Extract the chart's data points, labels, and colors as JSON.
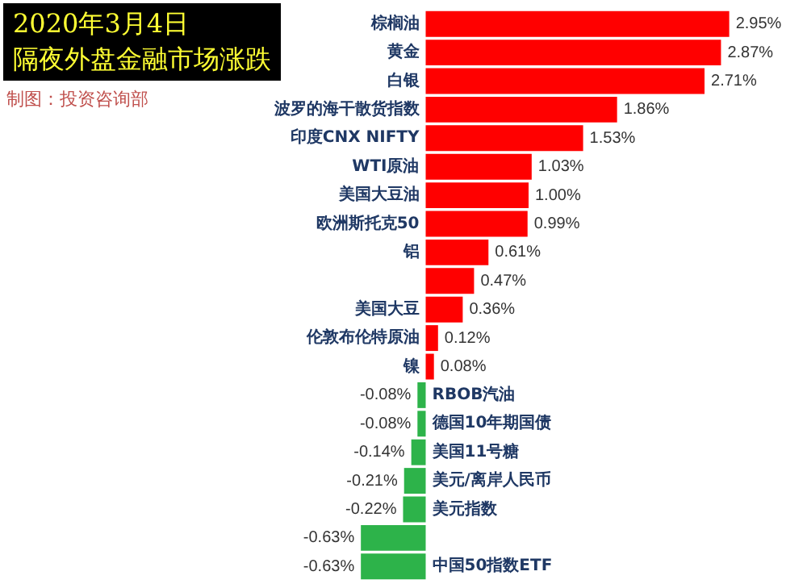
{
  "chart_data": {
    "type": "bar",
    "orientation": "horizontal",
    "title": "2020年3月4日",
    "subtitle": "隔夜外盘金融市场涨跌",
    "annotations": [
      "制图：投资咨询部"
    ],
    "categories": [
      "棕榈油",
      "黄金",
      "白银",
      "波罗的海干散货指数",
      "印度CNX NIFTY",
      "WTI原油",
      "美国大豆油",
      "欧洲斯托克50",
      "铝",
      null,
      "美国大豆",
      "伦敦布伦特原油",
      "镍",
      "RBOB汽油",
      "德国10年期国债",
      "美国11号糖",
      "美元/离岸人民币",
      "美元指数",
      null,
      "中国50指数ETF"
    ],
    "values": [
      2.95,
      2.87,
      2.71,
      1.86,
      1.53,
      1.03,
      1.0,
      0.99,
      0.61,
      0.47,
      0.36,
      0.12,
      0.08,
      -0.08,
      -0.08,
      -0.14,
      -0.21,
      -0.22,
      -0.63,
      -0.63
    ],
    "value_labels": [
      "2.95%",
      "2.87%",
      "2.71%",
      "1.86%",
      "1.53%",
      "1.03%",
      "1.00%",
      "0.99%",
      "0.61%",
      "0.47%",
      "0.36%",
      "0.12%",
      "0.08%",
      "-0.08%",
      "-0.08%",
      "-0.14%",
      "-0.21%",
      "-0.22%",
      "-0.63%",
      "-0.63%"
    ],
    "colors": [
      "#ff0000",
      "#ff0000",
      "#ff0000",
      "#ff0000",
      "#ff0000",
      "#ff0000",
      "#ff0000",
      "#ff0000",
      "#ff0000",
      "#ff0000",
      "#ff0000",
      "#ff0000",
      "#ff0000",
      "#2db34a",
      "#2db34a",
      "#2db34a",
      "#2db34a",
      "#2db34a",
      "#2db34a",
      "#2db34a"
    ]
  }
}
